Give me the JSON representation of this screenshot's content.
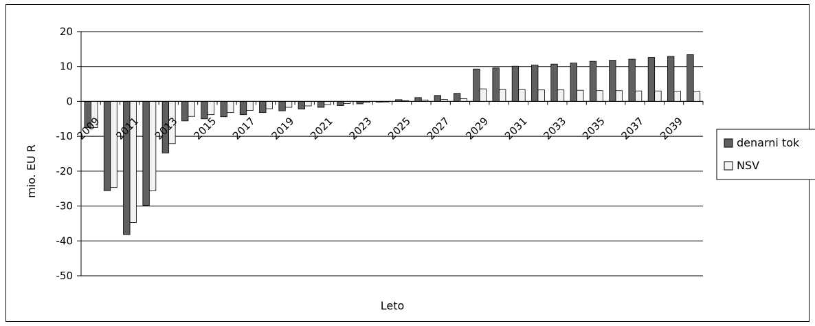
{
  "chart_data": {
    "type": "bar",
    "title": "",
    "xlabel": "Leto",
    "ylabel": "mio. EU R",
    "ylim": [
      -50,
      20
    ],
    "yticks": [
      20,
      10,
      0,
      -10,
      -20,
      -30,
      -40,
      -50
    ],
    "grid": true,
    "legend_position": "right",
    "categories": [
      "2009",
      "2010",
      "2011",
      "2012",
      "2013",
      "2014",
      "2015",
      "2016",
      "2017",
      "2018",
      "2019",
      "2020",
      "2021",
      "2022",
      "2023",
      "2024",
      "2025",
      "2026",
      "2027",
      "2028",
      "2029",
      "2030",
      "2031",
      "2032",
      "2033",
      "2034",
      "2035",
      "2036",
      "2037",
      "2038",
      "2039",
      "2040"
    ],
    "tick_labels": [
      "2009",
      "",
      "2011",
      "",
      "2013",
      "",
      "2015",
      "",
      "2017",
      "",
      "2019",
      "",
      "2021",
      "",
      "2023",
      "",
      "2025",
      "",
      "2027",
      "",
      "2029",
      "",
      "2031",
      "",
      "2033",
      "",
      "2035",
      "",
      "2037",
      "",
      "2039",
      ""
    ],
    "series": [
      {
        "name": "denarni tok",
        "color": "#606060",
        "values": [
          -7.5,
          -25.6,
          -38.2,
          -29.8,
          -14.8,
          -5.6,
          -5.0,
          -4.4,
          -3.8,
          -3.2,
          -2.7,
          -2.2,
          -1.7,
          -1.2,
          -0.7,
          -0.2,
          0.5,
          1.1,
          1.7,
          2.3,
          9.3,
          9.6,
          10.1,
          10.4,
          10.7,
          11.0,
          11.5,
          11.8,
          12.1,
          12.6,
          12.9,
          13.4
        ]
      },
      {
        "name": "NSV",
        "color": "#f2f2f2",
        "values": [
          -7.5,
          -24.7,
          -34.7,
          -25.6,
          -12.1,
          -4.3,
          -3.8,
          -3.2,
          -2.6,
          -2.1,
          -1.7,
          -1.3,
          -0.9,
          -0.6,
          -0.3,
          -0.1,
          0.2,
          0.4,
          0.6,
          0.8,
          3.6,
          3.4,
          3.4,
          3.3,
          3.3,
          3.2,
          3.1,
          3.1,
          3.0,
          3.0,
          2.9,
          2.8
        ]
      }
    ]
  }
}
